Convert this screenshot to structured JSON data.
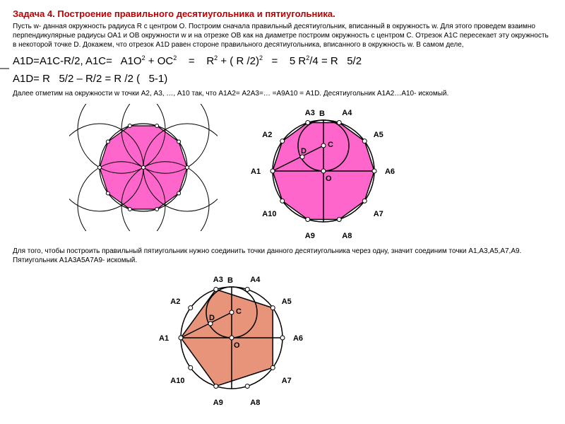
{
  "title": "Задача 4. Построение правильного десятиугольника и пятиугольника.",
  "intro": "Пусть w- данная окружность радиуса R с центром О. Построим сначала правильный десятиугольник, вписанный в окружность w. Для этого проведем взаимно перпендикулярные радиусы ОА1 и ОВ окружности w и на отрезке ОВ как на диаметре построим окружность с центром С. Отрезок А1С пересекает эту окружность в некоторой точке D. Докажем, что отрезок А1D равен стороне правильного десятиугольника, вписанного в окружность w. В самом деле,",
  "formula1": "A1D=A1C-R/2, A1C=   A1O ² + OC ²    =    R ² + ( R /2) ²   =    5 R ²/4 = R   5/2",
  "formula2": "A1D= R   5/2 – R/2 = R /2 (   5-1)",
  "note1": "Далее отметим на окружности w точки А2, А3, …, А10  так, что А1А2= А2А3=… =А9А10 = A1D. Десятиугольник А1А2…А10- искомый.",
  "note2": "Для того, чтобы построить правильный пятиугольник нужно соединить точки данного десятиугольника через одну, значит соединим точки А1,А3,А5,А7,А9. Пятиугольник А1А3А5А7А9- искомый.",
  "labels": {
    "A1": "A1",
    "A2": "A2",
    "A3": "A3",
    "A4": "A4",
    "A5": "A5",
    "A6": "A6",
    "A7": "A7",
    "A8": "A8",
    "A9": "A9",
    "A10": "A10",
    "B": "B",
    "C": "C",
    "D": "D",
    "O": "O"
  },
  "colors": {
    "fill_pink": "#ff66cc",
    "fill_pentagon": "#e8947a",
    "stroke": "#000000",
    "title": "#c00000",
    "bg": "#ffffff"
  },
  "diagram": {
    "R": 70,
    "small_r": 35
  }
}
